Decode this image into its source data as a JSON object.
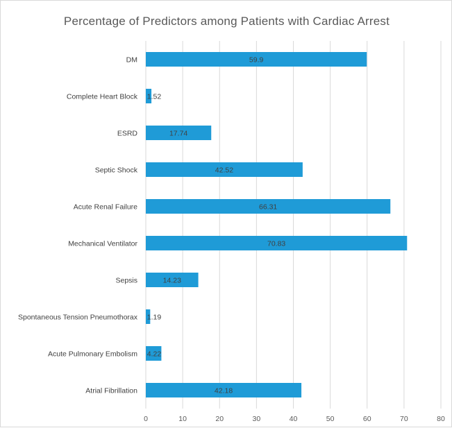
{
  "chart_data": {
    "type": "bar",
    "orientation": "horizontal",
    "title": "Percentage of Predictors among Patients with Cardiac Arrest",
    "xlabel": "",
    "ylabel": "",
    "categories": [
      "DM",
      "Complete Heart Block",
      "ESRD",
      "Septic Shock",
      "Acute Renal Failure",
      "Mechanical Ventilator",
      "Sepsis",
      "Spontaneous Tension Pneumothorax",
      "Acute Pulmonary Embolism",
      "Atrial Fibrillation"
    ],
    "values": [
      59.9,
      1.52,
      17.74,
      42.52,
      66.31,
      70.83,
      14.23,
      1.19,
      4.22,
      42.18
    ],
    "data_labels": [
      "59.9",
      "1.52",
      "17.74",
      "42.52",
      "66.31",
      "70.83",
      "14.23",
      "1.19",
      "4.22",
      "42.18"
    ],
    "xlim": [
      0,
      80
    ],
    "xticks": [
      0,
      10,
      20,
      30,
      40,
      50,
      60,
      70,
      80
    ],
    "grid": "vertical",
    "legend": "none",
    "bar_color": "#1f9bd7",
    "grid_color": "#d9d9d9"
  }
}
